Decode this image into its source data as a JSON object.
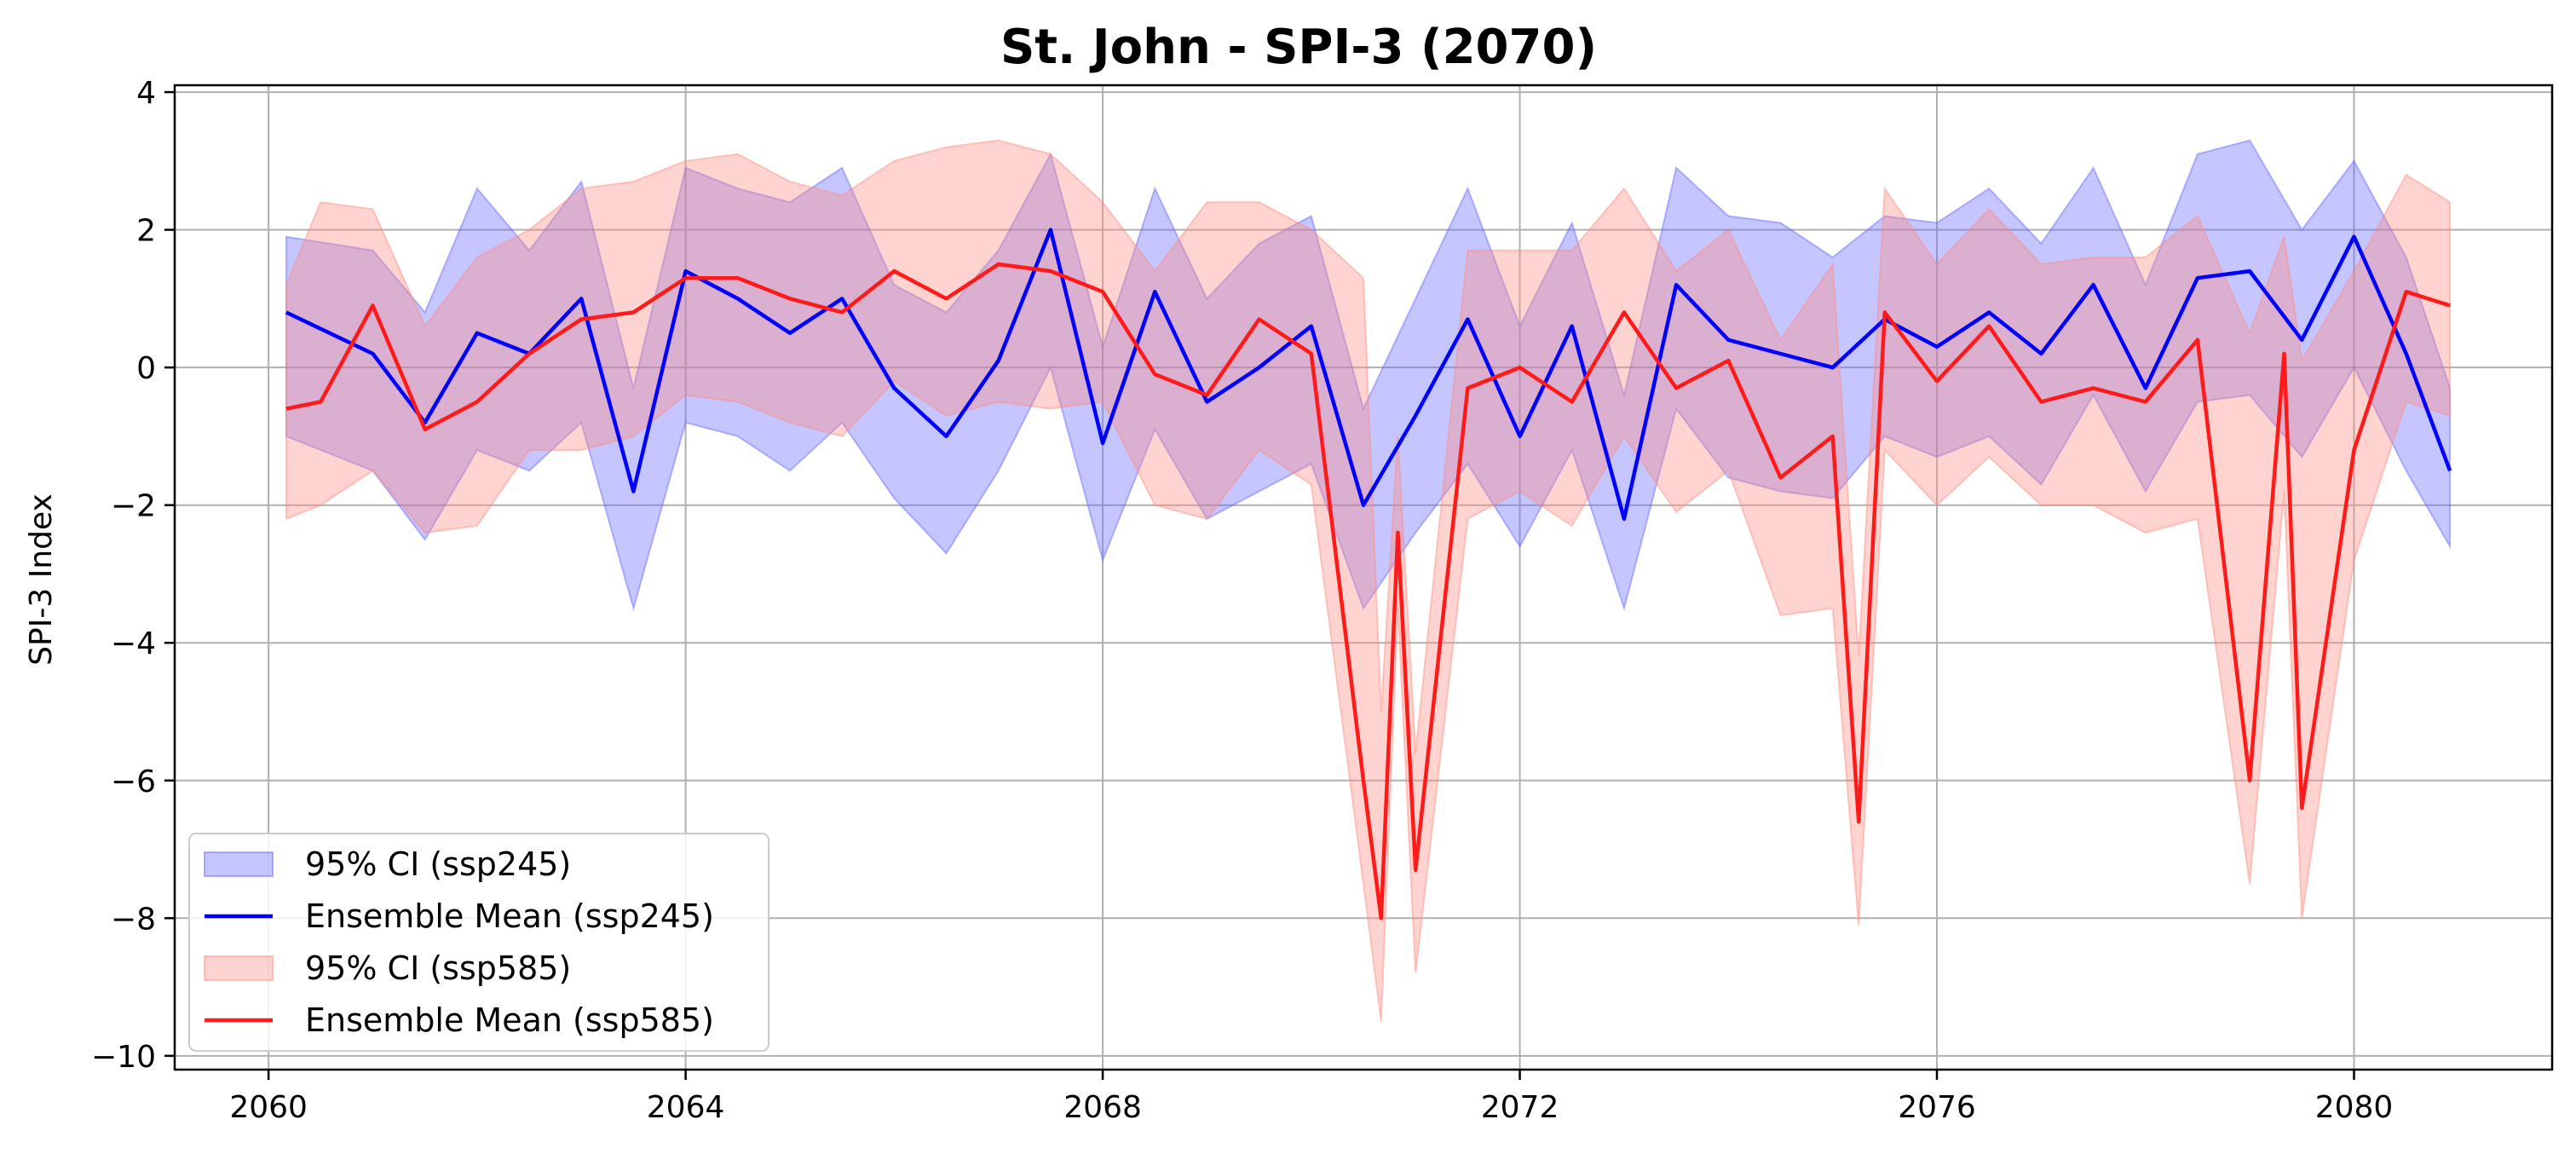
{
  "chart_data": {
    "type": "line",
    "title": "St. John - SPI-3 (2070)",
    "xlabel": "",
    "ylabel": "SPI-3 Index",
    "xlim": [
      2059.1,
      2081.9
    ],
    "ylim": [
      -10.2,
      4.1
    ],
    "x_ticks": [
      2060,
      2064,
      2068,
      2072,
      2076,
      2080
    ],
    "y_ticks": [
      4,
      2,
      0,
      -2,
      -4,
      -6,
      -8,
      -10
    ],
    "y_tick_labels": [
      "4",
      "2",
      "0",
      "−2",
      "−4",
      "−6",
      "−8",
      "−10"
    ],
    "grid": true,
    "legend_position": "lower-left",
    "series": [
      {
        "name": "Ensemble Mean (ssp245)",
        "ci_name": "95% CI (ssp245)",
        "color": "#0000ff",
        "fill_color": "#6666ff",
        "x": [
          2060.17,
          2061.0,
          2061.5,
          2062.0,
          2062.5,
          2063.0,
          2063.5,
          2064.0,
          2064.5,
          2065.0,
          2065.5,
          2066.0,
          2066.5,
          2067.0,
          2067.5,
          2068.0,
          2068.5,
          2069.0,
          2069.5,
          2070.0,
          2070.5,
          2071.0,
          2071.5,
          2072.0,
          2072.5,
          2073.0,
          2073.5,
          2074.0,
          2074.5,
          2075.0,
          2075.5,
          2076.0,
          2076.5,
          2077.0,
          2077.5,
          2078.0,
          2078.5,
          2079.0,
          2079.5,
          2080.0,
          2080.5,
          2080.92
        ],
        "values": [
          0.8,
          0.2,
          -0.8,
          0.5,
          0.2,
          1.0,
          -1.8,
          1.4,
          1.0,
          0.5,
          1.0,
          -0.3,
          -1.0,
          0.1,
          2.0,
          -1.1,
          1.1,
          -0.5,
          0.0,
          0.6,
          -2.0,
          -0.7,
          0.7,
          -1.0,
          0.6,
          -2.2,
          1.2,
          0.4,
          0.2,
          0.0,
          0.7,
          0.3,
          0.8,
          0.2,
          1.2,
          -0.3,
          1.3,
          1.4,
          0.4,
          1.9,
          0.2,
          -1.5
        ],
        "ci_lower": [
          -1.0,
          -1.5,
          -2.5,
          -1.2,
          -1.5,
          -0.8,
          -3.5,
          -0.8,
          -1.0,
          -1.5,
          -0.8,
          -1.9,
          -2.7,
          -1.5,
          0.0,
          -2.8,
          -0.9,
          -2.2,
          -1.8,
          -1.4,
          -3.5,
          -2.4,
          -1.4,
          -2.6,
          -1.2,
          -3.5,
          -0.6,
          -1.6,
          -1.8,
          -1.9,
          -1.0,
          -1.3,
          -1.0,
          -1.7,
          -0.4,
          -1.8,
          -0.5,
          -0.4,
          -1.3,
          0.0,
          -1.5,
          -2.6
        ],
        "ci_upper": [
          1.9,
          1.7,
          0.8,
          2.6,
          1.7,
          2.7,
          -0.3,
          2.9,
          2.6,
          2.4,
          2.9,
          1.2,
          0.8,
          1.7,
          3.1,
          0.3,
          2.6,
          1.0,
          1.8,
          2.2,
          -0.6,
          1.0,
          2.6,
          0.6,
          2.1,
          -0.4,
          2.9,
          2.2,
          2.1,
          1.6,
          2.2,
          2.1,
          2.6,
          1.8,
          2.9,
          1.2,
          3.1,
          3.3,
          2.0,
          3.0,
          1.6,
          -0.3
        ]
      },
      {
        "name": "Ensemble Mean (ssp585)",
        "ci_name": "95% CI (ssp585)",
        "color": "#ff1a1a",
        "fill_color": "#ff8c80",
        "x": [
          2060.17,
          2060.5,
          2061.0,
          2061.5,
          2062.0,
          2062.5,
          2063.0,
          2063.5,
          2064.0,
          2064.5,
          2065.0,
          2065.5,
          2066.0,
          2066.5,
          2067.0,
          2067.5,
          2068.0,
          2068.5,
          2069.0,
          2069.5,
          2070.0,
          2070.5,
          2070.67,
          2070.83,
          2071.0,
          2071.5,
          2072.0,
          2072.5,
          2073.0,
          2073.5,
          2074.0,
          2074.5,
          2075.0,
          2075.25,
          2075.5,
          2076.0,
          2076.5,
          2077.0,
          2077.5,
          2078.0,
          2078.5,
          2079.0,
          2079.33,
          2079.5,
          2080.0,
          2080.5,
          2080.92
        ],
        "values": [
          -0.6,
          -0.5,
          0.9,
          -0.9,
          -0.5,
          0.2,
          0.7,
          0.8,
          1.3,
          1.3,
          1.0,
          0.8,
          1.4,
          1.0,
          1.5,
          1.4,
          1.1,
          -0.1,
          -0.4,
          0.7,
          0.2,
          -6.0,
          -8.0,
          -2.4,
          -7.3,
          -0.3,
          0.0,
          -0.5,
          0.8,
          -0.3,
          0.1,
          -1.6,
          -1.0,
          -6.6,
          0.8,
          -0.2,
          0.6,
          -0.5,
          -0.3,
          -0.5,
          0.4,
          -6.0,
          0.2,
          -6.4,
          -1.2,
          1.1,
          0.9
        ],
        "ci_lower": [
          -2.2,
          -2.0,
          -1.5,
          -2.4,
          -2.3,
          -1.2,
          -1.2,
          -1.0,
          -0.4,
          -0.5,
          -0.8,
          -1.0,
          -0.2,
          -0.7,
          -0.5,
          -0.6,
          -0.5,
          -2.0,
          -2.2,
          -1.2,
          -1.7,
          -7.5,
          -9.5,
          -3.5,
          -8.8,
          -2.2,
          -1.8,
          -2.3,
          -1.0,
          -2.1,
          -1.5,
          -3.6,
          -3.5,
          -8.1,
          -1.2,
          -2.0,
          -1.3,
          -2.0,
          -2.0,
          -2.4,
          -2.2,
          -7.5,
          -1.8,
          -8.0,
          -2.8,
          -0.5,
          -0.7
        ],
        "ci_upper": [
          1.2,
          2.4,
          2.3,
          0.6,
          1.6,
          2.0,
          2.6,
          2.7,
          3.0,
          3.1,
          2.7,
          2.5,
          3.0,
          3.2,
          3.3,
          3.1,
          2.4,
          1.4,
          2.4,
          2.4,
          2.0,
          1.3,
          -5.0,
          -1.0,
          -5.6,
          1.7,
          1.7,
          1.7,
          2.6,
          1.4,
          2.0,
          0.4,
          1.5,
          -4.2,
          2.6,
          1.5,
          2.3,
          1.5,
          1.6,
          1.6,
          2.2,
          0.5,
          1.9,
          0.1,
          1.4,
          2.8,
          2.4
        ]
      }
    ]
  }
}
